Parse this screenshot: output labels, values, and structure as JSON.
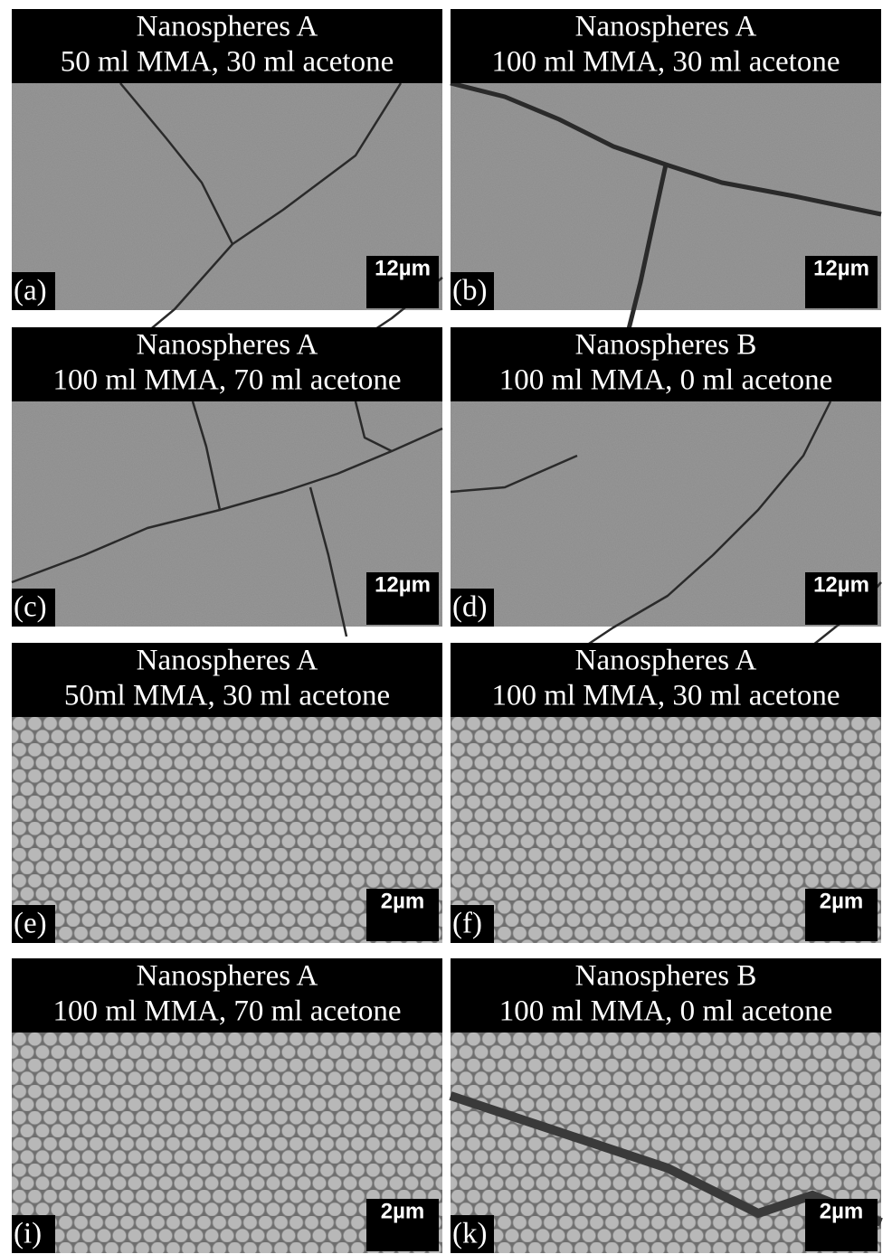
{
  "panels": [
    {
      "title": [
        "Nanospheres A",
        "50 ml MMA, 30 ml acetone"
      ],
      "label": "(a)",
      "scale": "12µm"
    },
    {
      "title": [
        "Nanospheres A",
        "100 ml MMA, 30 ml acetone"
      ],
      "label": "(b)",
      "scale": "12µm"
    },
    {
      "title": [
        "Nanospheres A",
        "100 ml MMA, 70 ml acetone"
      ],
      "label": "(c)",
      "scale": "12µm"
    },
    {
      "title": [
        "Nanospheres B",
        "100 ml MMA, 0 ml acetone"
      ],
      "label": "(d)",
      "scale": "12µm"
    },
    {
      "title": [
        "Nanospheres A",
        "50ml MMA, 30 ml acetone"
      ],
      "label": "(e)",
      "scale": "2µm"
    },
    {
      "title": [
        "Nanospheres A",
        "100 ml MMA, 30 ml acetone"
      ],
      "label": "(f)",
      "scale": "2µm"
    },
    {
      "title": [
        "Nanospheres A",
        "100 ml MMA, 70 ml acetone"
      ],
      "label": "(i)",
      "scale": "2µm"
    },
    {
      "title": [
        "Nanospheres B",
        "100 ml MMA, 0 ml acetone"
      ],
      "label": "(k)",
      "scale": "2µm"
    }
  ]
}
